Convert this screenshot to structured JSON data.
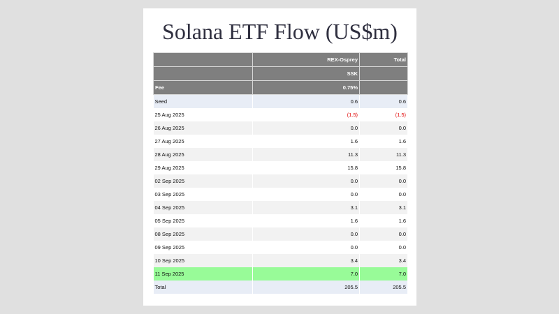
{
  "title": "Solana ETF Flow (US$m)",
  "header": {
    "fund_name": "REX-Osprey",
    "total_label": "Total",
    "ticker": "SSK",
    "fee_label": "Fee",
    "fee_value": "0.75%"
  },
  "rows": [
    {
      "date": "Seed",
      "fund": "0.6",
      "total": "0.6"
    },
    {
      "date": "25 Aug 2025",
      "fund": "(1.5)",
      "total": "(1.5)"
    },
    {
      "date": "26 Aug 2025",
      "fund": "0.0",
      "total": "0.0"
    },
    {
      "date": "27 Aug 2025",
      "fund": "1.6",
      "total": "1.6"
    },
    {
      "date": "28 Aug 2025",
      "fund": "11.3",
      "total": "11.3"
    },
    {
      "date": "29 Aug 2025",
      "fund": "15.8",
      "total": "15.8"
    },
    {
      "date": "02 Sep 2025",
      "fund": "0.0",
      "total": "0.0"
    },
    {
      "date": "03 Sep 2025",
      "fund": "0.0",
      "total": "0.0"
    },
    {
      "date": "04 Sep 2025",
      "fund": "3.1",
      "total": "3.1"
    },
    {
      "date": "05 Sep 2025",
      "fund": "1.6",
      "total": "1.6"
    },
    {
      "date": "08 Sep 2025",
      "fund": "0.0",
      "total": "0.0"
    },
    {
      "date": "09 Sep 2025",
      "fund": "0.0",
      "total": "0.0"
    },
    {
      "date": "10 Sep 2025",
      "fund": "3.4",
      "total": "3.4"
    },
    {
      "date": "11 Sep 2025",
      "fund": "7.0",
      "total": "7.0"
    }
  ],
  "total_row": {
    "label": "Total",
    "fund": "205.5",
    "total": "205.5"
  },
  "colors": {
    "header_bg": "#7f7f7f",
    "highlight_row": "#98fb98",
    "seed_total_row": "#e8edf6",
    "negative_text": "#e00000"
  }
}
